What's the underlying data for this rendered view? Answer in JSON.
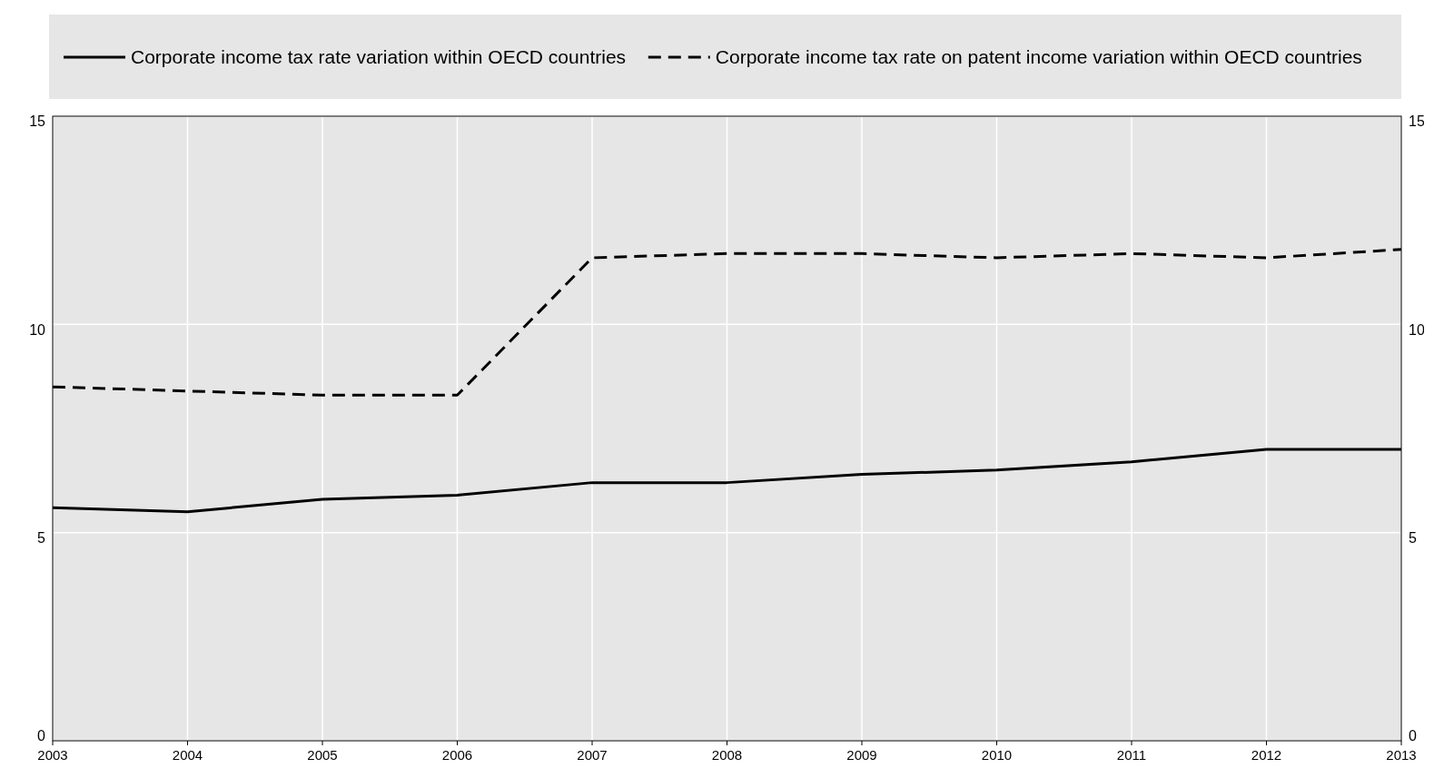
{
  "chart_data": {
    "type": "line",
    "x": [
      2003,
      2004,
      2005,
      2006,
      2007,
      2008,
      2009,
      2010,
      2011,
      2012,
      2013
    ],
    "series": [
      {
        "name": "Corporate income tax rate variation within OECD countries",
        "color": "#000000",
        "line_style": "solid",
        "values": [
          5.6,
          5.5,
          5.8,
          5.9,
          6.2,
          6.2,
          6.4,
          6.5,
          6.7,
          7.0,
          7.0
        ]
      },
      {
        "name": "Corporate income tax rate on patent income variation within OECD countries",
        "color": "#000000",
        "line_style": "dashed",
        "values": [
          8.5,
          8.4,
          8.3,
          8.3,
          11.6,
          11.7,
          11.7,
          11.6,
          11.7,
          11.6,
          11.8
        ]
      }
    ],
    "xlim": [
      2003,
      2013
    ],
    "xticks": [
      2003,
      2004,
      2005,
      2006,
      2007,
      2008,
      2009,
      2010,
      2011,
      2012,
      2013
    ],
    "ylim": [
      0,
      15
    ],
    "yticks": [
      0,
      5,
      10,
      15
    ],
    "y2lim": [
      0,
      15
    ],
    "y2ticks": [
      0,
      5,
      10,
      15
    ],
    "grid": true,
    "legend": "top"
  }
}
